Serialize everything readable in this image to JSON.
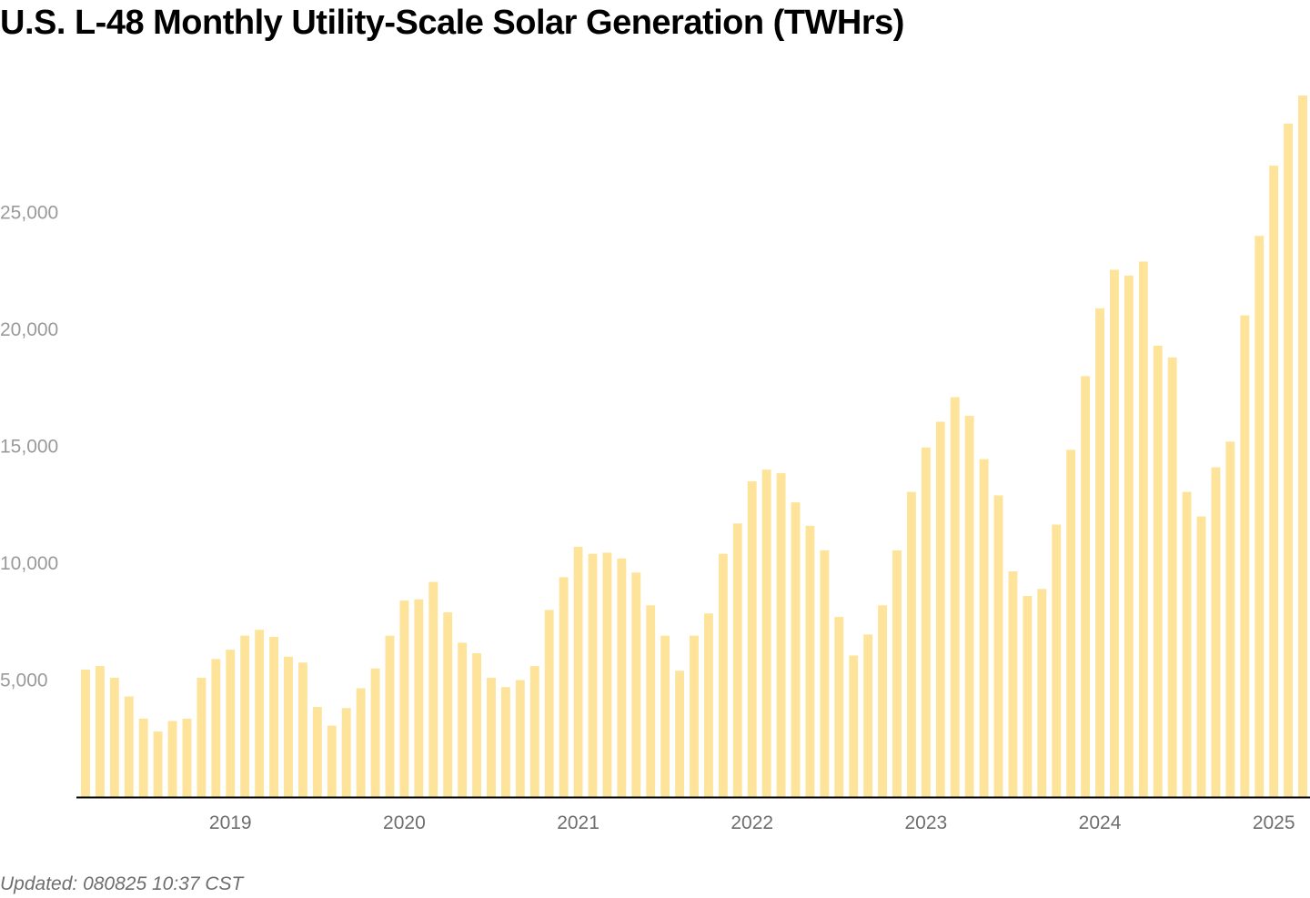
{
  "chart_data": {
    "type": "bar",
    "title": "U.S. L-48 Monthly Utility-Scale Solar Generation (TWHrs)",
    "xlabel": "",
    "ylabel": "",
    "start_month": "2018-08",
    "ylim": [
      0,
      30000
    ],
    "yticks": [
      5000,
      10000,
      15000,
      20000,
      25000
    ],
    "ytick_labels": [
      "5,000",
      "10,000",
      "15,000",
      "20,000",
      "25,000"
    ],
    "xtick_labels": [
      "2019",
      "2020",
      "2021",
      "2022",
      "2023",
      "2024",
      "2025"
    ],
    "grid": false,
    "values": [
      5450,
      5600,
      5100,
      4300,
      3350,
      2800,
      3250,
      3350,
      5100,
      5900,
      6300,
      6900,
      7150,
      6850,
      6000,
      5750,
      3850,
      3050,
      3800,
      4650,
      5500,
      6900,
      8400,
      8450,
      9200,
      7900,
      6600,
      6150,
      5100,
      4700,
      5000,
      5600,
      8000,
      9400,
      10700,
      10400,
      10450,
      10200,
      9600,
      8200,
      6900,
      5400,
      6900,
      7850,
      10400,
      11700,
      13500,
      14000,
      13850,
      12600,
      11600,
      10550,
      7700,
      6050,
      6950,
      8200,
      10550,
      13050,
      14950,
      16050,
      17100,
      16300,
      14450,
      12900,
      9650,
      8600,
      8900,
      11650,
      14850,
      18000,
      20900,
      22550,
      22300,
      22900,
      19300,
      18800,
      13050,
      12000,
      14100,
      15200,
      20600,
      24000,
      27000,
      28800,
      30000
    ],
    "bar_color": "#fde49a",
    "axis_color": "#000000"
  },
  "footer": {
    "updated": "Updated: 080825 10:37 CST"
  }
}
